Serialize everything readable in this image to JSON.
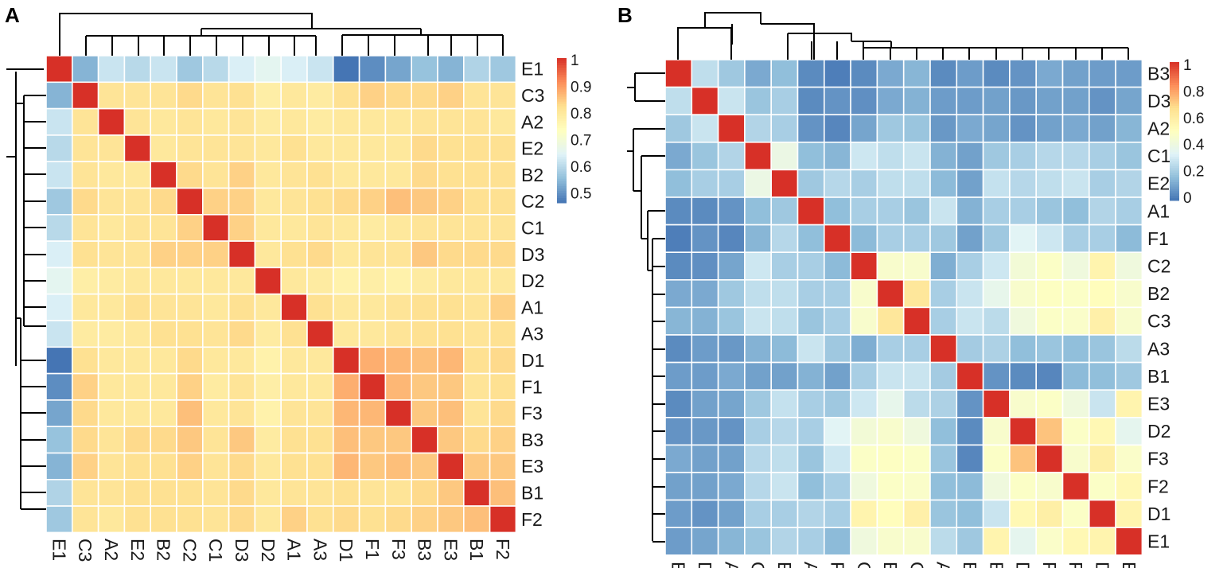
{
  "chart_data": [
    {
      "type": "heatmap",
      "panel_label": "A",
      "labels": [
        "E1",
        "C3",
        "A2",
        "E2",
        "B2",
        "C2",
        "C1",
        "D3",
        "D2",
        "A1",
        "A3",
        "D1",
        "F1",
        "F3",
        "B3",
        "E3",
        "B1",
        "F2"
      ],
      "colorbar": {
        "ticks": [
          "1",
          "0.9",
          "0.8",
          "0.7",
          "0.6",
          "0.5"
        ],
        "tick_values": [
          1,
          0.9,
          0.8,
          0.7,
          0.6,
          0.5
        ],
        "range": [
          0.44,
          1
        ]
      },
      "palette": [
        "#4575B4",
        "#91BFDB",
        "#E0F3F8",
        "#FFFFBF",
        "#FEE090",
        "#FC8D59",
        "#D73027"
      ],
      "values": [
        [
          1,
          0.52,
          0.6,
          0.58,
          0.6,
          0.55,
          0.58,
          0.62,
          0.64,
          0.62,
          0.6,
          0.44,
          0.47,
          0.5,
          0.54,
          0.52,
          0.57,
          0.55
        ],
        [
          0.52,
          1,
          0.8,
          0.8,
          0.8,
          0.82,
          0.8,
          0.81,
          0.77,
          0.79,
          0.78,
          0.81,
          0.83,
          0.82,
          0.82,
          0.83,
          0.8,
          0.8
        ],
        [
          0.6,
          0.8,
          1,
          0.8,
          0.79,
          0.8,
          0.79,
          0.8,
          0.78,
          0.79,
          0.78,
          0.79,
          0.79,
          0.79,
          0.8,
          0.8,
          0.8,
          0.79
        ],
        [
          0.58,
          0.8,
          0.8,
          1,
          0.79,
          0.8,
          0.8,
          0.8,
          0.79,
          0.81,
          0.79,
          0.79,
          0.79,
          0.79,
          0.82,
          0.81,
          0.81,
          0.81
        ],
        [
          0.6,
          0.8,
          0.79,
          0.79,
          1,
          0.82,
          0.8,
          0.83,
          0.79,
          0.8,
          0.81,
          0.79,
          0.79,
          0.79,
          0.82,
          0.81,
          0.81,
          0.81
        ],
        [
          0.55,
          0.82,
          0.8,
          0.8,
          0.82,
          1,
          0.83,
          0.83,
          0.79,
          0.8,
          0.81,
          0.82,
          0.83,
          0.85,
          0.84,
          0.83,
          0.81,
          0.81
        ],
        [
          0.58,
          0.8,
          0.79,
          0.8,
          0.8,
          0.83,
          1,
          0.83,
          0.79,
          0.79,
          0.8,
          0.79,
          0.78,
          0.79,
          0.8,
          0.8,
          0.8,
          0.8
        ],
        [
          0.62,
          0.81,
          0.8,
          0.8,
          0.83,
          0.83,
          0.83,
          1,
          0.79,
          0.81,
          0.82,
          0.79,
          0.8,
          0.8,
          0.84,
          0.82,
          0.82,
          0.82
        ],
        [
          0.64,
          0.77,
          0.78,
          0.79,
          0.79,
          0.79,
          0.79,
          0.79,
          1,
          0.79,
          0.78,
          0.76,
          0.77,
          0.76,
          0.78,
          0.79,
          0.79,
          0.79
        ],
        [
          0.62,
          0.79,
          0.79,
          0.81,
          0.8,
          0.8,
          0.79,
          0.81,
          0.79,
          1,
          0.81,
          0.79,
          0.79,
          0.8,
          0.81,
          0.81,
          0.8,
          0.83
        ],
        [
          0.6,
          0.78,
          0.78,
          0.79,
          0.81,
          0.81,
          0.8,
          0.82,
          0.78,
          0.81,
          1,
          0.79,
          0.79,
          0.8,
          0.81,
          0.81,
          0.8,
          0.81
        ],
        [
          0.44,
          0.81,
          0.79,
          0.79,
          0.79,
          0.82,
          0.79,
          0.79,
          0.76,
          0.79,
          0.79,
          1,
          0.87,
          0.86,
          0.85,
          0.86,
          0.81,
          0.82
        ],
        [
          0.47,
          0.83,
          0.79,
          0.79,
          0.79,
          0.83,
          0.78,
          0.8,
          0.77,
          0.79,
          0.79,
          0.87,
          1,
          0.86,
          0.84,
          0.84,
          0.8,
          0.81
        ],
        [
          0.5,
          0.82,
          0.79,
          0.79,
          0.79,
          0.85,
          0.79,
          0.8,
          0.76,
          0.8,
          0.8,
          0.86,
          0.86,
          1,
          0.84,
          0.85,
          0.8,
          0.82
        ],
        [
          0.54,
          0.82,
          0.8,
          0.82,
          0.82,
          0.84,
          0.8,
          0.84,
          0.78,
          0.81,
          0.81,
          0.85,
          0.84,
          0.84,
          1,
          0.84,
          0.82,
          0.83
        ],
        [
          0.52,
          0.83,
          0.8,
          0.81,
          0.81,
          0.83,
          0.8,
          0.82,
          0.79,
          0.81,
          0.81,
          0.86,
          0.84,
          0.85,
          0.84,
          1,
          0.84,
          0.84
        ],
        [
          0.57,
          0.8,
          0.8,
          0.81,
          0.81,
          0.81,
          0.8,
          0.82,
          0.79,
          0.8,
          0.8,
          0.81,
          0.8,
          0.8,
          0.82,
          0.84,
          1,
          0.85
        ],
        [
          0.55,
          0.8,
          0.79,
          0.81,
          0.81,
          0.81,
          0.8,
          0.82,
          0.79,
          0.83,
          0.81,
          0.82,
          0.81,
          0.82,
          0.83,
          0.84,
          0.85,
          1
        ]
      ]
    },
    {
      "type": "heatmap",
      "panel_label": "B",
      "labels": [
        "B3",
        "D3",
        "A2",
        "C1",
        "E2",
        "A1",
        "F1",
        "C2",
        "B2",
        "C3",
        "A3",
        "B1",
        "E3",
        "D2",
        "F3",
        "F2",
        "D1",
        "E1"
      ],
      "colorbar": {
        "ticks": [
          "1",
          "0.8",
          "0.6",
          "0.4",
          "0.2",
          "0"
        ],
        "tick_values": [
          1,
          0.8,
          0.6,
          0.4,
          0.2,
          0
        ],
        "range": [
          -0.02,
          1
        ]
      },
      "palette": [
        "#4575B4",
        "#91BFDB",
        "#E0F3F8",
        "#FFFFBF",
        "#FEE090",
        "#FC8D59",
        "#D73027"
      ],
      "values": [
        [
          1,
          0.25,
          0.18,
          0.1,
          0.15,
          0.03,
          0.0,
          0.03,
          0.1,
          0.13,
          0.03,
          0.07,
          0.03,
          0.05,
          0.1,
          0.08,
          0.07,
          0.07
        ],
        [
          0.25,
          1,
          0.27,
          0.17,
          0.2,
          0.03,
          0.05,
          0.04,
          0.1,
          0.12,
          0.07,
          0.07,
          0.08,
          0.06,
          0.08,
          0.08,
          0.05,
          0.09
        ],
        [
          0.18,
          0.27,
          1,
          0.22,
          0.2,
          0.05,
          0.02,
          0.09,
          0.18,
          0.17,
          0.06,
          0.1,
          0.09,
          0.05,
          0.08,
          0.1,
          0.08,
          0.13
        ],
        [
          0.1,
          0.17,
          0.22,
          1,
          0.38,
          0.15,
          0.13,
          0.28,
          0.25,
          0.27,
          0.12,
          0.08,
          0.18,
          0.2,
          0.23,
          0.23,
          0.2,
          0.17
        ],
        [
          0.15,
          0.2,
          0.2,
          0.38,
          1,
          0.18,
          0.23,
          0.2,
          0.25,
          0.25,
          0.14,
          0.08,
          0.26,
          0.23,
          0.25,
          0.27,
          0.2,
          0.22
        ],
        [
          0.03,
          0.03,
          0.05,
          0.15,
          0.18,
          1,
          0.15,
          0.2,
          0.2,
          0.17,
          0.27,
          0.12,
          0.2,
          0.2,
          0.17,
          0.15,
          0.22,
          0.2
        ],
        [
          0.0,
          0.05,
          0.02,
          0.13,
          0.23,
          0.15,
          1,
          0.14,
          0.2,
          0.2,
          0.18,
          0.08,
          0.18,
          0.33,
          0.28,
          0.2,
          0.2,
          0.14
        ],
        [
          0.03,
          0.04,
          0.09,
          0.28,
          0.2,
          0.2,
          0.14,
          1,
          0.45,
          0.45,
          0.11,
          0.2,
          0.28,
          0.42,
          0.47,
          0.4,
          0.55,
          0.4
        ],
        [
          0.1,
          0.1,
          0.18,
          0.25,
          0.25,
          0.2,
          0.2,
          0.45,
          1,
          0.62,
          0.2,
          0.27,
          0.36,
          0.45,
          0.48,
          0.47,
          0.5,
          0.45
        ],
        [
          0.13,
          0.12,
          0.17,
          0.27,
          0.25,
          0.17,
          0.2,
          0.45,
          0.62,
          1,
          0.2,
          0.27,
          0.24,
          0.4,
          0.47,
          0.46,
          0.57,
          0.45
        ],
        [
          0.03,
          0.07,
          0.06,
          0.12,
          0.14,
          0.27,
          0.18,
          0.11,
          0.2,
          0.2,
          1,
          0.19,
          0.21,
          0.15,
          0.17,
          0.15,
          0.17,
          0.24
        ],
        [
          0.07,
          0.07,
          0.1,
          0.08,
          0.08,
          0.12,
          0.08,
          0.2,
          0.27,
          0.27,
          0.19,
          1,
          0.05,
          0.03,
          0.02,
          0.14,
          0.15,
          0.18
        ],
        [
          0.03,
          0.08,
          0.09,
          0.18,
          0.26,
          0.2,
          0.18,
          0.28,
          0.36,
          0.24,
          0.21,
          0.05,
          1,
          0.45,
          0.47,
          0.4,
          0.27,
          0.55
        ],
        [
          0.05,
          0.06,
          0.05,
          0.2,
          0.23,
          0.2,
          0.33,
          0.42,
          0.45,
          0.4,
          0.15,
          0.03,
          0.45,
          1,
          0.72,
          0.47,
          0.53,
          0.35
        ],
        [
          0.1,
          0.08,
          0.08,
          0.23,
          0.25,
          0.17,
          0.28,
          0.47,
          0.48,
          0.47,
          0.17,
          0.02,
          0.47,
          0.72,
          1,
          0.45,
          0.58,
          0.46
        ],
        [
          0.08,
          0.08,
          0.1,
          0.23,
          0.27,
          0.15,
          0.2,
          0.4,
          0.47,
          0.46,
          0.15,
          0.14,
          0.4,
          0.47,
          0.45,
          1,
          0.47,
          0.53
        ],
        [
          0.07,
          0.05,
          0.08,
          0.2,
          0.2,
          0.22,
          0.2,
          0.55,
          0.5,
          0.57,
          0.17,
          0.15,
          0.27,
          0.53,
          0.58,
          0.47,
          1,
          0.55
        ],
        [
          0.07,
          0.09,
          0.13,
          0.17,
          0.22,
          0.2,
          0.14,
          0.4,
          0.45,
          0.45,
          0.24,
          0.18,
          0.55,
          0.35,
          0.46,
          0.53,
          0.55,
          1
        ]
      ]
    }
  ]
}
